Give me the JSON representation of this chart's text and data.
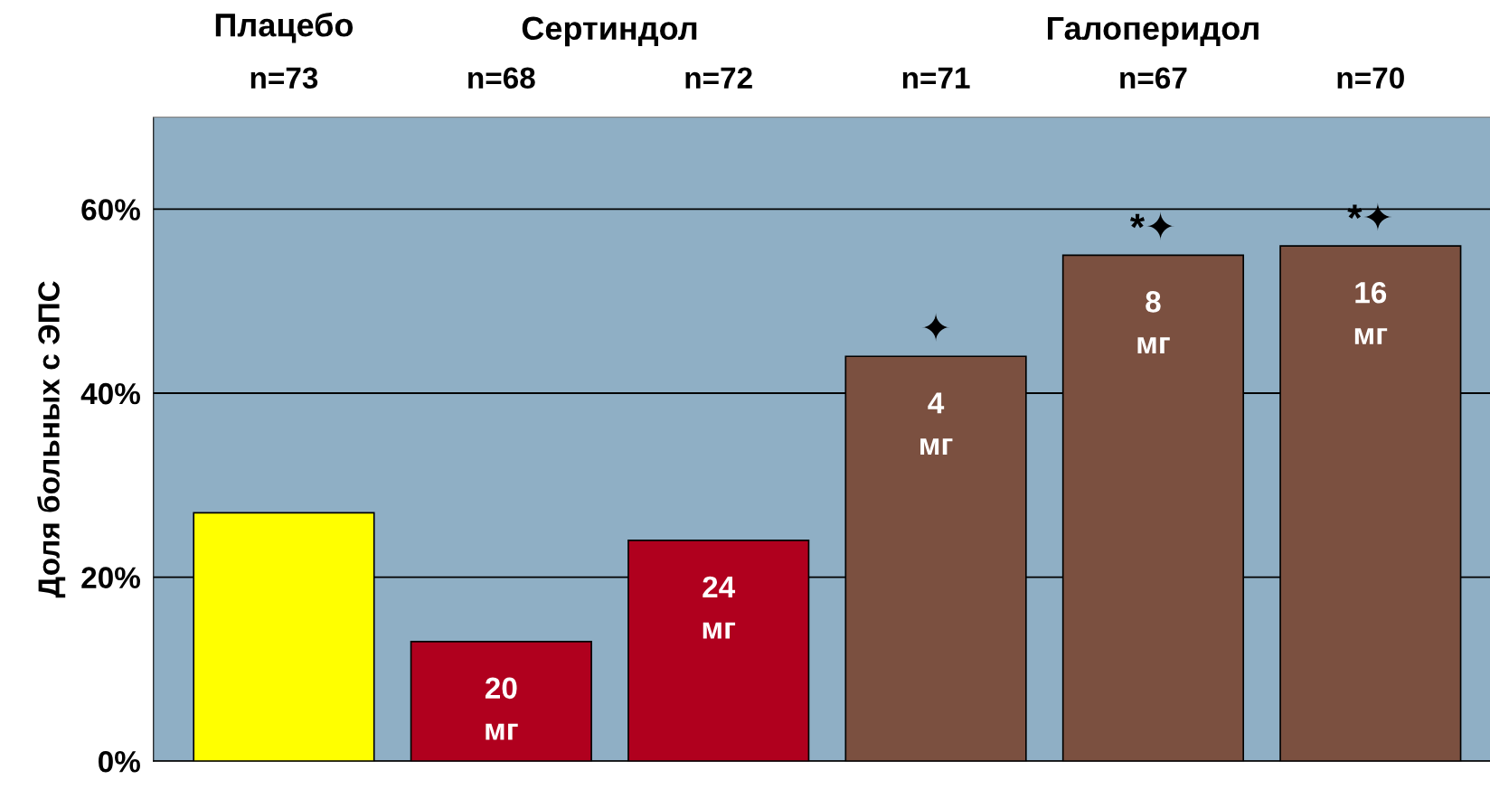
{
  "chart_data": {
    "type": "bar",
    "ylabel": "Доля больных с ЭПС",
    "categories": [
      "n=73",
      "n=68",
      "n=72",
      "n=71",
      "n=67",
      "n=70"
    ],
    "values": [
      27,
      13,
      24,
      44,
      55,
      56
    ],
    "colors": [
      "#ffff00",
      "#b0001e",
      "#b0001e",
      "#7b5040",
      "#7b5040",
      "#7b5040"
    ],
    "ylim": [
      0,
      70
    ],
    "yticks": [
      {
        "value": 0,
        "label": "0%"
      },
      {
        "value": 20,
        "label": "20%"
      },
      {
        "value": 40,
        "label": "40%"
      },
      {
        "value": 60,
        "label": "60%"
      }
    ],
    "grid": "y",
    "annotations": [
      "Плацебо",
      "Сертиндол",
      "Галоперидол",
      {
        "text": "20\nмг",
        "x": "n=68",
        "y": 13
      },
      {
        "text": "24\nмг",
        "x": "n=72",
        "y": 24
      },
      {
        "text": "4\nмг",
        "x": "n=71",
        "y": 44
      },
      {
        "text": "8\nмг",
        "x": "n=67",
        "y": 55
      },
      {
        "text": "16\nмг",
        "x": "n=70",
        "y": 56
      },
      {
        "text": "✦",
        "x": "n=71",
        "y": 44
      },
      {
        "text": "*✦",
        "x": "n=67",
        "y": 55
      },
      {
        "text": "*✦",
        "x": "n=70",
        "y": 56
      }
    ]
  }
}
